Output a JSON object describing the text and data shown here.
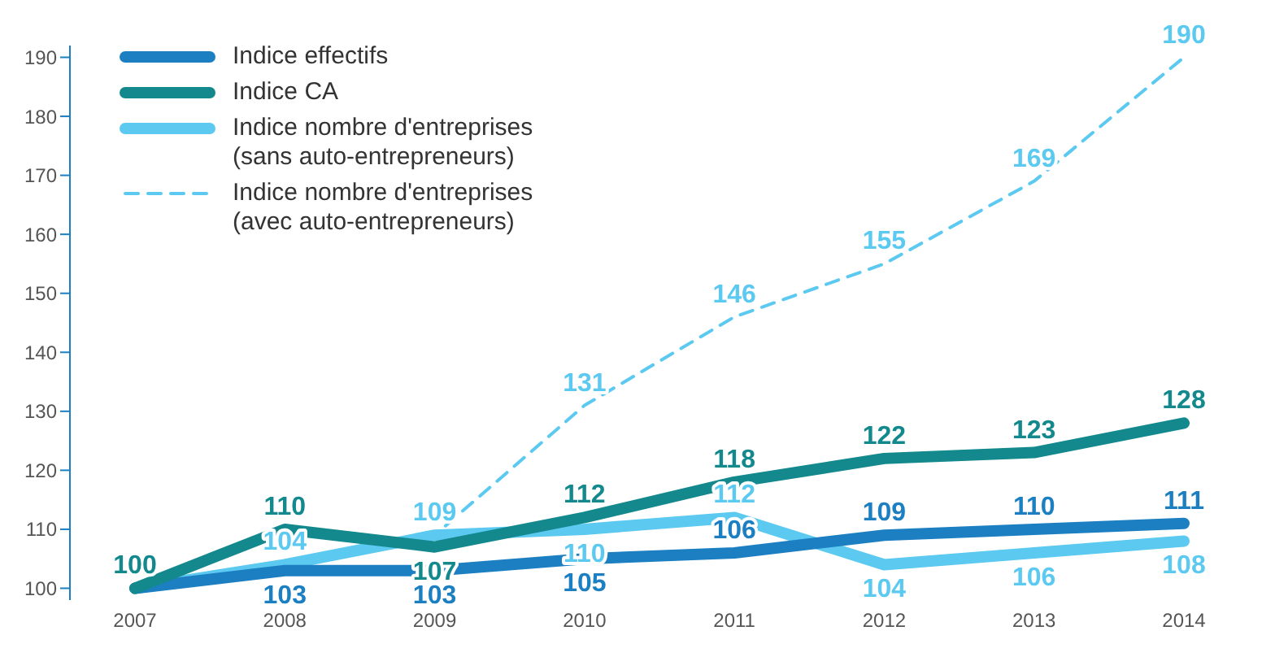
{
  "chart_data": {
    "type": "line",
    "categories": [
      "2007",
      "2008",
      "2009",
      "2010",
      "2011",
      "2012",
      "2013",
      "2014"
    ],
    "series": [
      {
        "name": "Indice effectifs",
        "color": "#1b7fc2",
        "values": [
          100,
          103,
          103,
          105,
          106,
          109,
          110,
          111
        ],
        "value_labels": [
          null,
          "103",
          "103",
          "105",
          "106",
          "109",
          "110",
          "111"
        ]
      },
      {
        "name": "Indice CA",
        "color": "#13898d",
        "values": [
          100,
          110,
          107,
          112,
          118,
          122,
          123,
          128
        ],
        "value_labels": [
          "100",
          "110",
          "107",
          "112",
          "118",
          "122",
          "123",
          "128"
        ]
      },
      {
        "name": "Indice nombre d'entreprises (sans auto-entrepreneurs)",
        "color": "#5cc9f1",
        "values": [
          100,
          104,
          109,
          110,
          112,
          104,
          106,
          108
        ],
        "value_labels": [
          null,
          "104",
          "109",
          "110",
          "112",
          "104",
          "106",
          "108"
        ]
      },
      {
        "name": "Indice nombre d'entreprises (avec auto-entrepreneurs)",
        "color": "#5cc9f1",
        "line_style": "dashed",
        "values": [
          100,
          104,
          109,
          131,
          146,
          155,
          169,
          190
        ],
        "value_labels": [
          null,
          null,
          null,
          "131",
          "146",
          "155",
          "169",
          "190"
        ]
      }
    ],
    "ylim": [
      98,
      192
    ],
    "yticks": [
      100,
      110,
      120,
      130,
      140,
      150,
      160,
      170,
      180,
      190
    ],
    "grid": false,
    "legend": "top left",
    "marker": "none"
  }
}
